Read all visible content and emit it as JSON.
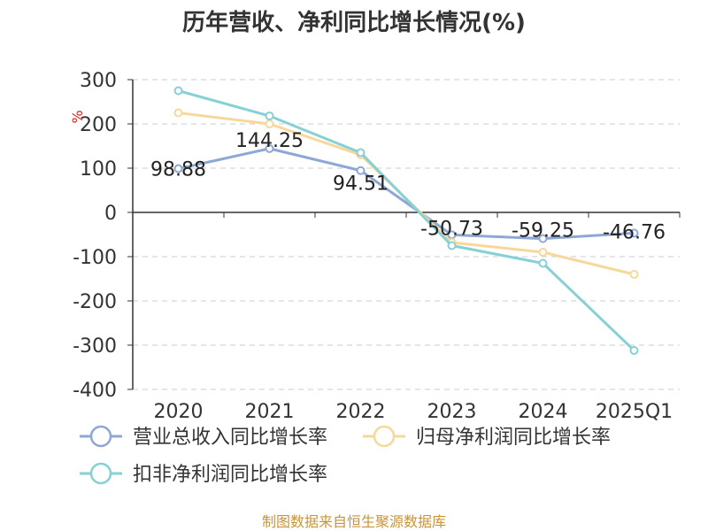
{
  "chart_data": {
    "type": "line",
    "title": "历年营收、净利同比增长情况(%)",
    "ylabel": "%",
    "categories": [
      "2020",
      "2021",
      "2022",
      "2023",
      "2024",
      "2025Q1"
    ],
    "yticks": [
      "300",
      "200",
      "100",
      "0",
      "-100",
      "-200",
      "-300",
      "-400"
    ],
    "ylim": [
      -400,
      300
    ],
    "grid": true,
    "legend_position": "bottom",
    "series": [
      {
        "name": "营业总收入同比增长率",
        "color": "#8ea7d4",
        "values": [
          98.88,
          144.25,
          94.51,
          -50.73,
          -59.25,
          -46.76
        ],
        "labels": [
          "98.88",
          "144.25",
          "94.51",
          "-50.73",
          "-59.25",
          "-46.76"
        ]
      },
      {
        "name": "归母净利润同比增长率",
        "color": "#f7d89a",
        "values": [
          225,
          200,
          130,
          -68,
          -90,
          -140
        ]
      },
      {
        "name": "扣非净利润同比增长率",
        "color": "#86d0d6",
        "values": [
          275,
          218,
          135,
          -75,
          -115,
          -312
        ]
      }
    ],
    "source": "制图数据来自恒生聚源数据库"
  }
}
